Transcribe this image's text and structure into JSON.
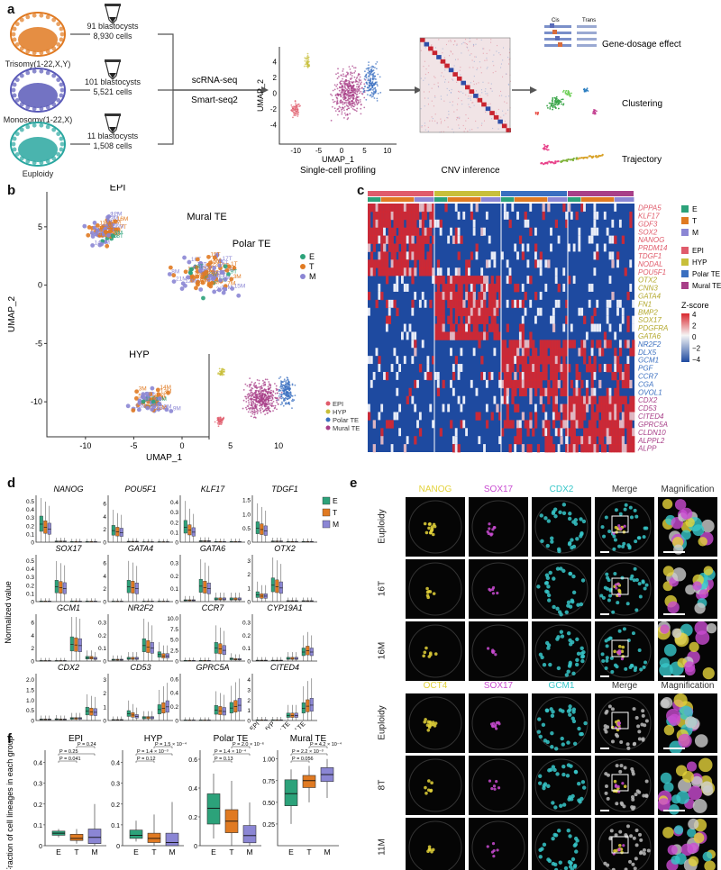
{
  "panels": {
    "a": "a",
    "b": "b",
    "c": "c",
    "d": "d",
    "e": "e",
    "f": "f"
  },
  "colors": {
    "E": "#2ca27a",
    "T": "#e07a22",
    "M": "#8b86d4",
    "EPI": "#e05b6b",
    "HYP": "#c8bf3a",
    "PolarTE": "#3a6fc0",
    "MuralTE": "#a83f88",
    "heat_red": "#d9272e",
    "heat_blue": "#1e4aa0"
  },
  "panel_a": {
    "groups": [
      {
        "name": "Trisomy(1-22,X,Y)",
        "blastocysts": "91 blastocysts",
        "cells": "8,930 cells",
        "color": "#e07a22"
      },
      {
        "name": "Monosomy(1-22,X)",
        "blastocysts": "101 blastocysts",
        "cells": "5,521 cells",
        "color": "#5a5ab8"
      },
      {
        "name": "Euploidy",
        "blastocysts": "11 blastocysts",
        "cells": "1,508 cells",
        "color": "#2aa7a0"
      }
    ],
    "method1": "scRNA-seq",
    "method2": "Smart-seq2",
    "umap_xlabel": "UMAP_1",
    "umap_ylabel": "UMAP_2",
    "umap_xticks": [
      "-10",
      "-5",
      "0",
      "5",
      "10"
    ],
    "umap_yticks": [
      "4",
      "2",
      "0",
      "-2",
      "-4"
    ],
    "step1": "Single-cell profiling",
    "step2": "CNV inference",
    "cis": "Cis",
    "trans": "Trans",
    "out1": "Gene-dosage effect",
    "out2": "Clustering",
    "out3": "Trajectory"
  },
  "panel_b": {
    "xlabel": "UMAP_1",
    "ylabel": "UMAP_2",
    "xticks": [
      "-10",
      "-5",
      "0",
      "5",
      "10"
    ],
    "yticks": [
      "5",
      "0",
      "-5",
      "-10"
    ],
    "cluster_labels": [
      "EPI",
      "Mural TE",
      "Polar TE",
      "HYP"
    ],
    "legend1": [
      {
        "k": "E",
        "c": "#2ca27a"
      },
      {
        "k": "T",
        "c": "#e07a22"
      },
      {
        "k": "M",
        "c": "#8b86d4"
      }
    ],
    "legend2": [
      {
        "k": "EPI",
        "c": "#e05b6b"
      },
      {
        "k": "HYP",
        "c": "#c8bf3a"
      },
      {
        "k": "Polar TE",
        "c": "#3a6fc0"
      },
      {
        "k": "Mural TE",
        "c": "#a83f88"
      }
    ],
    "tags": [
      "13M",
      "19T",
      "11T",
      "10M",
      "14T",
      "12T",
      "6M",
      "1M",
      "8M",
      "3M",
      "5M",
      "9T",
      "2T",
      "17T",
      "10T",
      "12M",
      "18T",
      "7T",
      "21T",
      "4T",
      "16M",
      "XM",
      "15T",
      "22T",
      "1T",
      "20T",
      "YT",
      "9M",
      "11M",
      "14M",
      "17M",
      "4M",
      "8T",
      "5T",
      "3T",
      "13T",
      "15M",
      "16T",
      "6T",
      "22M",
      "19M",
      "20M",
      "2M",
      "7M",
      "18M",
      "21M",
      "3M",
      "13M"
    ]
  },
  "panel_c": {
    "genes": [
      {
        "g": "DPPA5",
        "grp": "EPI"
      },
      {
        "g": "KLF17",
        "grp": "EPI"
      },
      {
        "g": "GDF3",
        "grp": "EPI"
      },
      {
        "g": "SOX2",
        "grp": "EPI"
      },
      {
        "g": "NANOG",
        "grp": "EPI"
      },
      {
        "g": "PRDM14",
        "grp": "EPI"
      },
      {
        "g": "TDGF1",
        "grp": "EPI"
      },
      {
        "g": "NODAL",
        "grp": "EPI"
      },
      {
        "g": "POU5F1",
        "grp": "EPI"
      },
      {
        "g": "OTX2",
        "grp": "HYP"
      },
      {
        "g": "CNN3",
        "grp": "HYP"
      },
      {
        "g": "GATA4",
        "grp": "HYP"
      },
      {
        "g": "FN1",
        "grp": "HYP"
      },
      {
        "g": "BMP2",
        "grp": "HYP"
      },
      {
        "g": "SOX17",
        "grp": "HYP"
      },
      {
        "g": "PDGFRA",
        "grp": "HYP"
      },
      {
        "g": "GATA6",
        "grp": "HYP"
      },
      {
        "g": "NR2F2",
        "grp": "PolarTE"
      },
      {
        "g": "DLX5",
        "grp": "PolarTE"
      },
      {
        "g": "GCM1",
        "grp": "PolarTE"
      },
      {
        "g": "PGF",
        "grp": "PolarTE"
      },
      {
        "g": "CCR7",
        "grp": "PolarTE"
      },
      {
        "g": "CGA",
        "grp": "PolarTE"
      },
      {
        "g": "OVOL1",
        "grp": "PolarTE"
      },
      {
        "g": "CDX2",
        "grp": "MuralTE"
      },
      {
        "g": "CD53",
        "grp": "MuralTE"
      },
      {
        "g": "CITED4",
        "grp": "MuralTE"
      },
      {
        "g": "GPRC5A",
        "grp": "MuralTE"
      },
      {
        "g": "CLDN10",
        "grp": "MuralTE"
      },
      {
        "g": "ALPPL2",
        "grp": "MuralTE"
      },
      {
        "g": "ALPP",
        "grp": "MuralTE"
      }
    ],
    "legend_groups": [
      {
        "k": "E",
        "c": "#2ca27a"
      },
      {
        "k": "T",
        "c": "#e07a22"
      },
      {
        "k": "M",
        "c": "#8b86d4"
      }
    ],
    "legend_types": [
      {
        "k": "EPI",
        "c": "#e05b6b"
      },
      {
        "k": "HYP",
        "c": "#c8bf3a"
      },
      {
        "k": "Polar TE",
        "c": "#3a6fc0"
      },
      {
        "k": "Mural TE",
        "c": "#a83f88"
      }
    ],
    "zscore_title": "Z-score",
    "zscore_ticks": [
      "4",
      "2",
      "0",
      "−2",
      "−4"
    ]
  },
  "panel_d": {
    "ylabel": "Normalized value",
    "xcats": [
      "EPI",
      "HYP",
      "Polar TE",
      "Mural TE"
    ],
    "legend": [
      {
        "k": "E",
        "c": "#2ca27a"
      },
      {
        "k": "T",
        "c": "#e07a22"
      },
      {
        "k": "M",
        "c": "#8b86d4"
      }
    ],
    "genes": [
      {
        "name": "NANOG",
        "yticks": [
          "0.5",
          "0.4",
          "0.3",
          "0.2",
          "0.1",
          "0"
        ],
        "ymax": 0.55,
        "med": [
          [
            0.22,
            0.18,
            0.16
          ],
          [
            0.01,
            0.01,
            0.01
          ],
          [
            0.005,
            0.005,
            0.005
          ],
          [
            0.005,
            0.005,
            0.005
          ]
        ]
      },
      {
        "name": "POU5F1",
        "yticks": [
          "6",
          "4",
          "2",
          "0"
        ],
        "ymax": 7,
        "med": [
          [
            1.8,
            1.6,
            1.5
          ],
          [
            0.1,
            0.1,
            0.1
          ],
          [
            0.05,
            0.05,
            0.05
          ],
          [
            0.05,
            0.05,
            0.05
          ]
        ]
      },
      {
        "name": "KLF17",
        "yticks": [
          "0.4",
          "0.3",
          "0.2",
          "0.1",
          "0"
        ],
        "ymax": 0.45,
        "med": [
          [
            0.15,
            0.12,
            0.1
          ],
          [
            0.01,
            0.01,
            0.01
          ],
          [
            0.005,
            0.005,
            0.005
          ],
          [
            0.005,
            0.005,
            0.005
          ]
        ]
      },
      {
        "name": "TDGF1",
        "yticks": [
          "1.5",
          "1.0",
          "0.5",
          "0"
        ],
        "ymax": 1.6,
        "med": [
          [
            0.5,
            0.45,
            0.4
          ],
          [
            0.03,
            0.03,
            0.03
          ],
          [
            0.02,
            0.02,
            0.02
          ],
          [
            0.02,
            0.02,
            0.02
          ]
        ]
      },
      {
        "name": "SOX17",
        "yticks": [
          "0.5",
          "0.4",
          "0.3",
          "0.2",
          "0.1",
          "0"
        ],
        "ymax": 0.55,
        "med": [
          [
            0.005,
            0.005,
            0.005
          ],
          [
            0.18,
            0.17,
            0.16
          ],
          [
            0.005,
            0.005,
            0.005
          ],
          [
            0.005,
            0.005,
            0.005
          ]
        ]
      },
      {
        "name": "GATA4",
        "yticks": [
          "6",
          "4",
          "2",
          "0"
        ],
        "ymax": 7,
        "med": [
          [
            0.05,
            0.05,
            0.05
          ],
          [
            2.3,
            2.2,
            2.0
          ],
          [
            0.05,
            0.05,
            0.05
          ],
          [
            0.05,
            0.05,
            0.05
          ]
        ]
      },
      {
        "name": "GATA6",
        "yticks": [
          "0.3",
          "0.2",
          "0.1",
          "0"
        ],
        "ymax": 0.35,
        "med": [
          [
            0.01,
            0.01,
            0.01
          ],
          [
            0.12,
            0.11,
            0.1
          ],
          [
            0.02,
            0.02,
            0.02
          ],
          [
            0.02,
            0.02,
            0.02
          ]
        ]
      },
      {
        "name": "OTX2",
        "yticks": [
          "3",
          "2",
          "1",
          "0"
        ],
        "ymax": 3.3,
        "med": [
          [
            0.5,
            0.4,
            0.4
          ],
          [
            1.2,
            1.1,
            1.0
          ],
          [
            0.05,
            0.05,
            0.05
          ],
          [
            0.05,
            0.05,
            0.05
          ]
        ]
      },
      {
        "name": "GCM1",
        "yticks": [
          "6",
          "4",
          "2",
          "0"
        ],
        "ymax": 7,
        "med": [
          [
            0.05,
            0.05,
            0.05
          ],
          [
            0.05,
            0.05,
            0.05
          ],
          [
            2.6,
            2.5,
            2.4
          ],
          [
            0.5,
            0.5,
            0.4
          ]
        ]
      },
      {
        "name": "NR2F2",
        "yticks": [
          "0.3",
          "0.2",
          "0.1",
          "0"
        ],
        "ymax": 0.35,
        "med": [
          [
            0.01,
            0.01,
            0.01
          ],
          [
            0.02,
            0.02,
            0.02
          ],
          [
            0.12,
            0.11,
            0.1
          ],
          [
            0.05,
            0.04,
            0.04
          ]
        ]
      },
      {
        "name": "CCR7",
        "yticks": [
          "10.0",
          "7.5",
          "5.0",
          "2.5",
          "0"
        ],
        "ymax": 10.5,
        "med": [
          [
            0.1,
            0.1,
            0.1
          ],
          [
            0.1,
            0.1,
            0.1
          ],
          [
            3.0,
            2.8,
            2.5
          ],
          [
            0.5,
            0.4,
            0.4
          ]
        ]
      },
      {
        "name": "CYP19A1",
        "yticks": [
          "0.3",
          "0.2",
          "0.1",
          "0"
        ],
        "ymax": 0.35,
        "med": [
          [
            0.005,
            0.005,
            0.005
          ],
          [
            0.005,
            0.005,
            0.005
          ],
          [
            0.02,
            0.02,
            0.02
          ],
          [
            0.07,
            0.08,
            0.07
          ]
        ]
      },
      {
        "name": "CDX2",
        "yticks": [
          "2.0",
          "1.5",
          "1.0",
          "0.5",
          "0"
        ],
        "ymax": 2.2,
        "med": [
          [
            0.05,
            0.05,
            0.05
          ],
          [
            0.06,
            0.05,
            0.05
          ],
          [
            0.1,
            0.1,
            0.1
          ],
          [
            0.45,
            0.42,
            0.4
          ]
        ]
      },
      {
        "name": "CD53",
        "yticks": [
          "3",
          "2",
          "1",
          "0"
        ],
        "ymax": 3.3,
        "med": [
          [
            0.05,
            0.05,
            0.05
          ],
          [
            0.5,
            0.4,
            0.3
          ],
          [
            0.2,
            0.2,
            0.2
          ],
          [
            0.8,
            0.9,
            1.0
          ]
        ]
      },
      {
        "name": "GPRC5A",
        "yticks": [
          "0.6",
          "0.4",
          "0.2",
          "0"
        ],
        "ymax": 0.65,
        "med": [
          [
            0.005,
            0.005,
            0.005
          ],
          [
            0.005,
            0.005,
            0.005
          ],
          [
            0.15,
            0.14,
            0.13
          ],
          [
            0.18,
            0.2,
            0.22
          ]
        ]
      },
      {
        "name": "CITED4",
        "yticks": [
          "4",
          "3",
          "2",
          "1",
          "0"
        ],
        "ymax": 4.4,
        "med": [
          [
            0.05,
            0.05,
            0.05
          ],
          [
            0.05,
            0.05,
            0.05
          ],
          [
            0.5,
            0.5,
            0.5
          ],
          [
            1.2,
            1.4,
            1.5
          ]
        ]
      }
    ]
  },
  "panel_e": {
    "top_headers": [
      "NANOG",
      "SOX17",
      "CDX2",
      "Merge",
      "Magnification"
    ],
    "top_header_colors": [
      "#e3d23a",
      "#c94bd1",
      "#37c7c9",
      "#333333",
      "#333333"
    ],
    "top_rows": [
      "Euploidy",
      "16T",
      "16M"
    ],
    "bottom_headers": [
      "OCT4",
      "SOX17",
      "GCM1",
      "Merge",
      "Magnification"
    ],
    "bottom_header_colors": [
      "#e3d23a",
      "#c94bd1",
      "#37c7c9",
      "#333333",
      "#333333"
    ],
    "bottom_rows": [
      "Euploidy",
      "8T",
      "11M"
    ]
  },
  "panel_f": {
    "ylabel": "Fraction of cell lineages in each group",
    "xcats": [
      "E",
      "T",
      "M"
    ],
    "yticks": [
      "0.4",
      "0.3",
      "0.2",
      "0.1",
      "0"
    ],
    "subplots": [
      {
        "title": "EPI",
        "ymax": 0.45,
        "yticks": [
          "0.4",
          "0.3",
          "0.2",
          "0.1",
          "0"
        ],
        "boxes": [
          [
            0.04,
            0.05,
            0.06,
            0.07,
            0.08
          ],
          [
            0.01,
            0.025,
            0.035,
            0.055,
            0.08
          ],
          [
            0.0,
            0.01,
            0.04,
            0.08,
            0.2
          ]
        ],
        "pvals": [
          "P = 0.041",
          "P = 0.25",
          "P = 0.24"
        ]
      },
      {
        "title": "HYP",
        "ymax": 0.45,
        "yticks": [
          "0.4",
          "0.3",
          "0.2",
          "0.1",
          "0"
        ],
        "boxes": [
          [
            0.02,
            0.035,
            0.05,
            0.075,
            0.12
          ],
          [
            0.0,
            0.015,
            0.035,
            0.06,
            0.15
          ],
          [
            0.0,
            0.0,
            0.015,
            0.06,
            0.21
          ]
        ],
        "pvals": [
          "P = 0.12",
          "P = 1.4 × 10⁻³",
          "P = 1.5 × 10⁻⁴"
        ]
      },
      {
        "title": "Polar TE",
        "ymax": 0.65,
        "yticks": [
          "0.6",
          "0.4",
          "0.2",
          "0"
        ],
        "boxes": [
          [
            0.05,
            0.15,
            0.26,
            0.36,
            0.5
          ],
          [
            0.0,
            0.09,
            0.17,
            0.25,
            0.45
          ],
          [
            0.0,
            0.02,
            0.07,
            0.14,
            0.3
          ]
        ],
        "pvals": [
          "P = 0.13",
          "P = 1.4 × 10⁻⁴",
          "P = 2.0 × 10⁻⁶"
        ]
      },
      {
        "title": "Mural TE",
        "ymax": 1.08,
        "yticks": [
          "1.00",
          "0.75",
          "0.50",
          "0.25"
        ],
        "boxes": [
          [
            0.25,
            0.46,
            0.6,
            0.76,
            0.88
          ],
          [
            0.5,
            0.67,
            0.75,
            0.81,
            0.92
          ],
          [
            0.55,
            0.74,
            0.82,
            0.9,
            1.0
          ]
        ],
        "pvals": [
          "P = 0.056",
          "P = 2.2 × 10⁻³",
          "P = 4.2 × 10⁻⁴"
        ]
      }
    ]
  }
}
